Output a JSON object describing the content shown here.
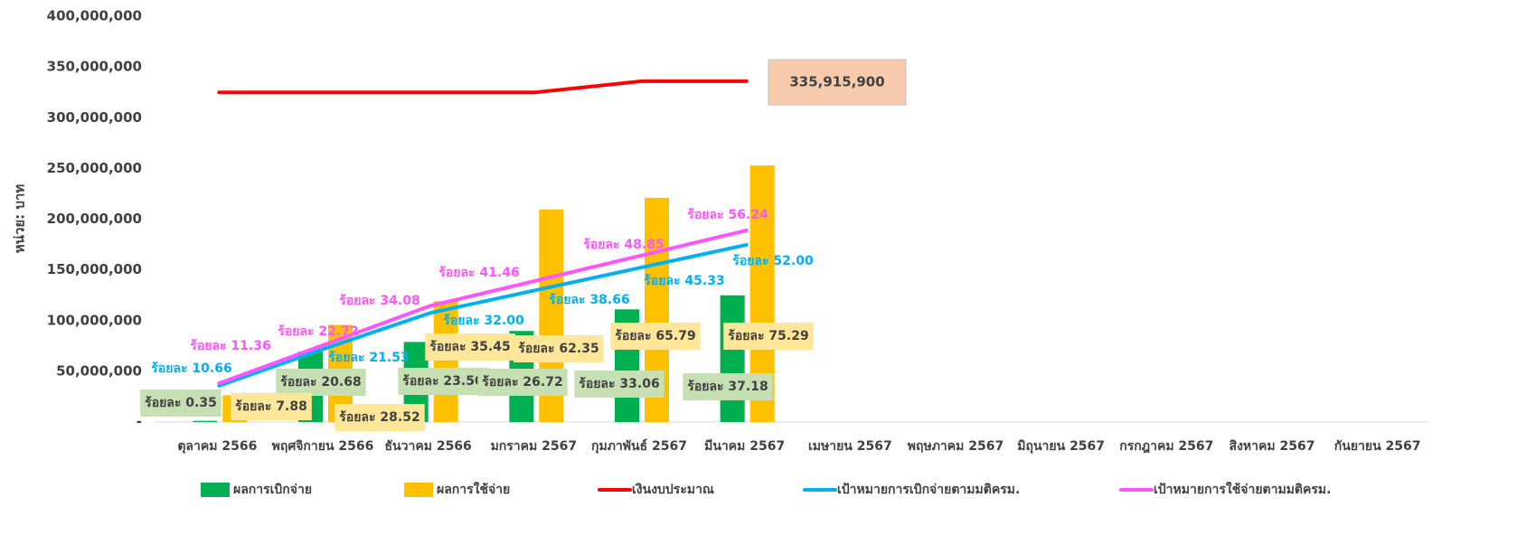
{
  "chart_data": {
    "type": "combo",
    "y_label": "หน่วย: บาท",
    "categories": [
      "ตุลาคม 2566",
      "พฤศจิกายน 2566",
      "ธันวาคม 2566",
      "มกราคม 2567",
      "กุมภาพันธ์ 2567",
      "มีนาคม 2567",
      "เมษายน 2567",
      "พฤษภาคม 2567",
      "มิถุนายน 2567",
      "กรกฎาคม 2567",
      "สิงหาคม 2567",
      "กันยายน 2567"
    ],
    "ylim": [
      0,
      400000000
    ],
    "yticks": [
      {
        "value": 0,
        "label": "-"
      },
      {
        "value": 50000000,
        "label": "50,000,000"
      },
      {
        "value": 100000000,
        "label": "100,000,000"
      },
      {
        "value": 150000000,
        "label": "150,000,000"
      },
      {
        "value": 200000000,
        "label": "200,000,000"
      },
      {
        "value": 250000000,
        "label": "250,000,000"
      },
      {
        "value": 300000000,
        "label": "300,000,000"
      },
      {
        "value": 350000000,
        "label": "350,000,000"
      },
      {
        "value": 400000000,
        "label": "400,000,000"
      }
    ],
    "series": [
      {
        "name": "ผลการเบิกจ่าย",
        "kind": "bar",
        "color": "#00b050",
        "values": [
          1176000,
          69467000,
          78940000,
          89757000,
          111054000,
          124894000,
          null,
          null,
          null,
          null,
          null,
          null
        ],
        "value_labels": [
          "ร้อยละ 0.35",
          "ร้อยละ 20.68",
          "ร้อยละ 23.50",
          "ร้อยละ 26.72",
          "ร้อยละ 33.06",
          "ร้อยละ 37.18",
          null,
          null,
          null,
          null,
          null,
          null
        ]
      },
      {
        "name": "ผลการใช้จ่าย",
        "kind": "bar",
        "color": "#ffc000",
        "values": [
          26470000,
          95803000,
          119082000,
          209444000,
          220999000,
          252911000,
          null,
          null,
          null,
          null,
          null,
          null
        ],
        "value_labels": [
          "ร้อยละ 7.88",
          "ร้อยละ 28.52",
          "ร้อยละ 35.45",
          "ร้อยละ 62.35",
          "ร้อยละ 65.79",
          "ร้อยละ 75.29",
          null,
          null,
          null,
          null,
          null,
          null
        ]
      },
      {
        "name": "เงินงบประมาณ",
        "kind": "line",
        "color": "#ff0000",
        "values": [
          325000000,
          325000000,
          325000000,
          325000000,
          335915900,
          335915900,
          null,
          null,
          null,
          null,
          null,
          null
        ],
        "value_labels": [
          null,
          null,
          null,
          null,
          null,
          "335,915,900",
          null,
          null,
          null,
          null,
          null,
          null
        ]
      },
      {
        "name": "เป้าหมายการเบิกจ่ายตามมติครม.",
        "kind": "line",
        "color": "#00b0f0",
        "values": [
          35809000,
          72323000,
          107493000,
          129865000,
          152271000,
          174676000,
          null,
          null,
          null,
          null,
          null,
          null
        ],
        "value_labels": [
          "ร้อยละ 10.66",
          "ร้อยละ 21.53",
          "ร้อยละ 32.00",
          "ร้อยละ 38.66",
          "ร้อยละ 45.33",
          "ร้อยละ 52.00",
          null,
          null,
          null,
          null,
          null,
          null
        ]
      },
      {
        "name": "เป้าหมายการใช้จ่ายตามมติครม.",
        "kind": "line",
        "color": "#ff55ff",
        "values": [
          38160000,
          76320000,
          114480000,
          139271000,
          164095000,
          188919000,
          null,
          null,
          null,
          null,
          null,
          null
        ],
        "value_labels": [
          "ร้อยละ 11.36",
          "ร้อยละ 22.72",
          "ร้อยละ 34.08",
          "ร้อยละ 41.46",
          "ร้อยละ 48.85",
          "ร้อยละ 56.24",
          null,
          null,
          null,
          null,
          null,
          null
        ]
      }
    ]
  }
}
